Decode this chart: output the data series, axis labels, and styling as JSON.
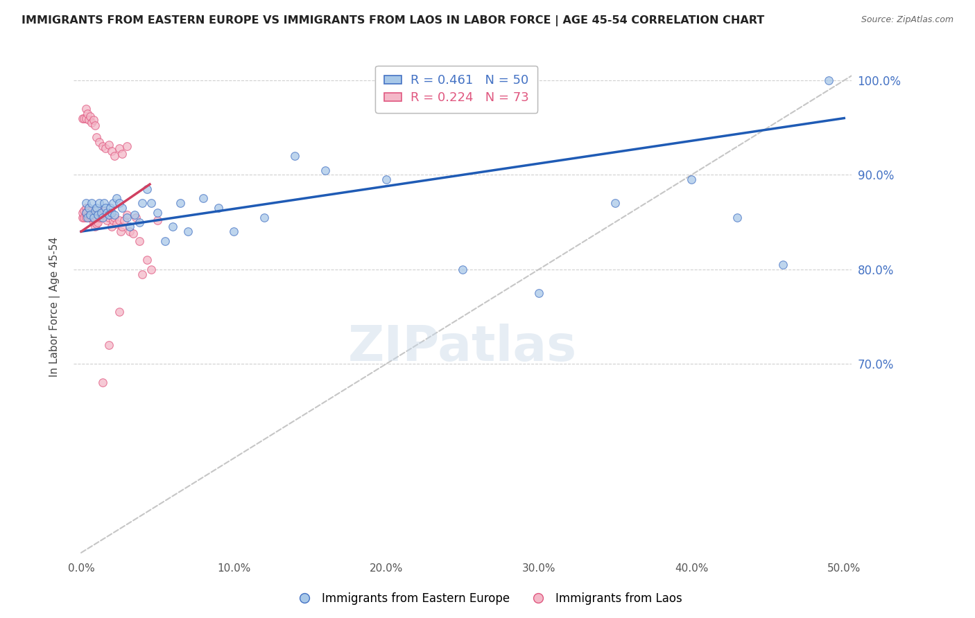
{
  "title": "IMMIGRANTS FROM EASTERN EUROPE VS IMMIGRANTS FROM LAOS IN LABOR FORCE | AGE 45-54 CORRELATION CHART",
  "source": "Source: ZipAtlas.com",
  "ylabel": "In Labor Force | Age 45-54",
  "right_ytick_labels": [
    "70.0%",
    "80.0%",
    "90.0%",
    "100.0%"
  ],
  "right_ytick_values": [
    0.7,
    0.8,
    0.9,
    1.0
  ],
  "xtick_labels": [
    "0.0%",
    "10.0%",
    "20.0%",
    "30.0%",
    "40.0%",
    "50.0%"
  ],
  "xtick_values": [
    0.0,
    0.1,
    0.2,
    0.3,
    0.4,
    0.5
  ],
  "xlim": [
    -0.005,
    0.505
  ],
  "ylim": [
    0.495,
    1.025
  ],
  "legend_blue_r": "R = 0.461",
  "legend_blue_n": "N = 50",
  "legend_pink_r": "R = 0.224",
  "legend_pink_n": "N = 73",
  "legend_series1": "Immigrants from Eastern Europe",
  "legend_series2": "Immigrants from Laos",
  "blue_fill_color": "#a8c8e8",
  "blue_edge_color": "#4472c4",
  "pink_fill_color": "#f4b8c8",
  "pink_edge_color": "#e05880",
  "blue_line_color": "#1f5bb5",
  "pink_line_color": "#d04060",
  "ref_line_color": "#c0c0c0",
  "scatter_alpha": 0.75,
  "scatter_size": 70,
  "blue_R": 0.461,
  "blue_N": 50,
  "pink_R": 0.224,
  "pink_N": 73,
  "blue_trend_x0": 0.0,
  "blue_trend_y0": 0.84,
  "blue_trend_x1": 0.5,
  "blue_trend_y1": 0.96,
  "pink_trend_x0": 0.0,
  "pink_trend_y0": 0.84,
  "pink_trend_x1": 0.045,
  "pink_trend_y1": 0.89,
  "blue_points_x": [
    0.003,
    0.003,
    0.004,
    0.005,
    0.006,
    0.007,
    0.008,
    0.009,
    0.01,
    0.011,
    0.012,
    0.013,
    0.014,
    0.015,
    0.016,
    0.017,
    0.018,
    0.019,
    0.02,
    0.021,
    0.022,
    0.023,
    0.025,
    0.027,
    0.03,
    0.032,
    0.035,
    0.038,
    0.04,
    0.043,
    0.046,
    0.05,
    0.055,
    0.06,
    0.065,
    0.07,
    0.08,
    0.09,
    0.1,
    0.12,
    0.14,
    0.16,
    0.2,
    0.25,
    0.3,
    0.35,
    0.4,
    0.43,
    0.46,
    0.49
  ],
  "blue_points_y": [
    0.86,
    0.87,
    0.855,
    0.865,
    0.858,
    0.87,
    0.855,
    0.862,
    0.865,
    0.858,
    0.87,
    0.86,
    0.855,
    0.87,
    0.865,
    0.86,
    0.858,
    0.865,
    0.86,
    0.87,
    0.858,
    0.875,
    0.87,
    0.865,
    0.855,
    0.845,
    0.858,
    0.85,
    0.87,
    0.885,
    0.87,
    0.86,
    0.83,
    0.845,
    0.87,
    0.84,
    0.875,
    0.865,
    0.84,
    0.855,
    0.92,
    0.905,
    0.895,
    0.8,
    0.775,
    0.87,
    0.895,
    0.855,
    0.805,
    1.0
  ],
  "pink_points_x": [
    0.001,
    0.001,
    0.002,
    0.002,
    0.003,
    0.003,
    0.003,
    0.004,
    0.004,
    0.005,
    0.005,
    0.006,
    0.006,
    0.007,
    0.007,
    0.007,
    0.008,
    0.008,
    0.009,
    0.009,
    0.01,
    0.01,
    0.011,
    0.011,
    0.012,
    0.012,
    0.013,
    0.014,
    0.015,
    0.016,
    0.017,
    0.018,
    0.019,
    0.02,
    0.021,
    0.022,
    0.023,
    0.025,
    0.026,
    0.027,
    0.028,
    0.03,
    0.032,
    0.034,
    0.036,
    0.038,
    0.04,
    0.043,
    0.046,
    0.05,
    0.001,
    0.002,
    0.003,
    0.003,
    0.004,
    0.005,
    0.006,
    0.007,
    0.008,
    0.009,
    0.01,
    0.012,
    0.014,
    0.016,
    0.018,
    0.02,
    0.022,
    0.025,
    0.027,
    0.03,
    0.014,
    0.018,
    0.025
  ],
  "pink_points_y": [
    0.855,
    0.86,
    0.855,
    0.862,
    0.86,
    0.865,
    0.855,
    0.858,
    0.862,
    0.855,
    0.858,
    0.855,
    0.86,
    0.858,
    0.862,
    0.855,
    0.85,
    0.858,
    0.845,
    0.852,
    0.848,
    0.855,
    0.85,
    0.858,
    0.855,
    0.86,
    0.855,
    0.858,
    0.862,
    0.858,
    0.852,
    0.855,
    0.858,
    0.845,
    0.852,
    0.855,
    0.848,
    0.852,
    0.84,
    0.845,
    0.852,
    0.858,
    0.84,
    0.838,
    0.855,
    0.83,
    0.795,
    0.81,
    0.8,
    0.852,
    0.96,
    0.96,
    0.96,
    0.97,
    0.965,
    0.958,
    0.962,
    0.955,
    0.958,
    0.952,
    0.94,
    0.935,
    0.93,
    0.928,
    0.932,
    0.925,
    0.92,
    0.928,
    0.922,
    0.93,
    0.68,
    0.72,
    0.755
  ],
  "watermark_text": "ZIPatlas",
  "watermark_color": "#c8d8e8",
  "watermark_alpha": 0.45,
  "background_color": "#ffffff",
  "grid_color": "#d0d0d0"
}
